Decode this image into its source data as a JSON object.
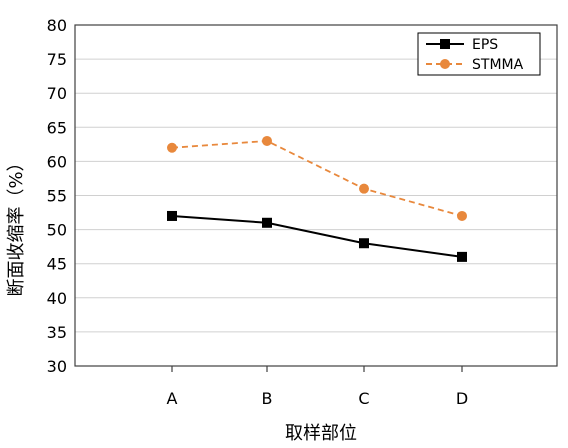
{
  "chart_data": {
    "type": "line",
    "title": "",
    "xlabel": "取样部位",
    "ylabel": "断面收缩率（%）",
    "categories": [
      "A",
      "B",
      "C",
      "D"
    ],
    "ylim": [
      30,
      80
    ],
    "yticks": [
      30,
      35,
      40,
      45,
      50,
      55,
      60,
      65,
      70,
      75,
      80
    ],
    "grid": true,
    "legend_position": "top-right",
    "series": [
      {
        "name": "EPS",
        "values": [
          52,
          51,
          48,
          46
        ],
        "color": "#000000",
        "line_style": "solid",
        "marker": "square"
      },
      {
        "name": "STMMA",
        "values": [
          62,
          63,
          56,
          52
        ],
        "color": "#E8883C",
        "line_style": "dashed",
        "marker": "circle"
      }
    ]
  }
}
